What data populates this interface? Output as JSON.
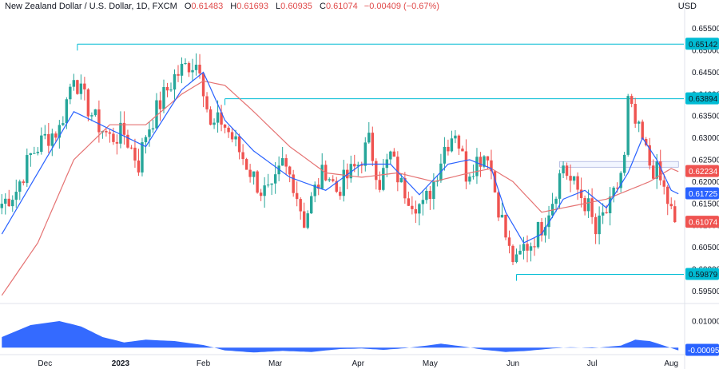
{
  "header": {
    "symbol": "New Zealand Dollar / U.S. Dollar, 1D, FXCM",
    "o_label": "O",
    "o_value": "0.61483",
    "h_label": "H",
    "h_value": "0.61693",
    "l_label": "L",
    "l_value": "0.60935",
    "c_label": "C",
    "c_value": "0.61074",
    "change": "−0.00409 (−0.67%)"
  },
  "currency_label": "USD",
  "colors": {
    "up": "#26a69a",
    "down": "#ef5350",
    "ma_fast": "#2962ff",
    "ma_slow": "#e57373",
    "level": "#00bcd4",
    "histogram": "#2962ff",
    "current_price": "#ef5350"
  },
  "chart_data": [
    {
      "type": "candlestick",
      "title": "New Zealand Dollar / U.S. Dollar, 1D, FXCM",
      "y_ticks": [
        "0.65500",
        "0.65000",
        "0.64500",
        "0.64000",
        "0.63500",
        "0.63000",
        "0.62500",
        "0.62000",
        "0.61500",
        "0.61000",
        "0.60500",
        "0.60000",
        "0.59500"
      ],
      "ylim": [
        0.5925,
        0.6575
      ],
      "x_tick_labels": [
        {
          "label": "Dec",
          "bar": 12,
          "bold": false
        },
        {
          "label": "2023",
          "bar": 33,
          "bold": true
        },
        {
          "label": "Feb",
          "bar": 56,
          "bold": false
        },
        {
          "label": "Mar",
          "bar": 76,
          "bold": false
        },
        {
          "label": "Apr",
          "bar": 99,
          "bold": false
        },
        {
          "label": "May",
          "bar": 119,
          "bold": false
        },
        {
          "label": "Jun",
          "bar": 142,
          "bold": false
        },
        {
          "label": "Jul",
          "bar": 164,
          "bold": false
        },
        {
          "label": "Aug",
          "bar": 186,
          "bold": false
        }
      ],
      "bar_count": 190,
      "ohlc_anchor_closes": [
        [
          0,
          0.615
        ],
        [
          4,
          0.618
        ],
        [
          8,
          0.626
        ],
        [
          12,
          0.63
        ],
        [
          16,
          0.632
        ],
        [
          20,
          0.645
        ],
        [
          22,
          0.64
        ],
        [
          26,
          0.634
        ],
        [
          30,
          0.63
        ],
        [
          34,
          0.631
        ],
        [
          38,
          0.624
        ],
        [
          40,
          0.631
        ],
        [
          44,
          0.638
        ],
        [
          48,
          0.644
        ],
        [
          52,
          0.647
        ],
        [
          55,
          0.647
        ],
        [
          58,
          0.632
        ],
        [
          61,
          0.634
        ],
        [
          64,
          0.63
        ],
        [
          68,
          0.624
        ],
        [
          72,
          0.618
        ],
        [
          75,
          0.617
        ],
        [
          78,
          0.624
        ],
        [
          81,
          0.62
        ],
        [
          84,
          0.611
        ],
        [
          87,
          0.618
        ],
        [
          90,
          0.623
        ],
        [
          93,
          0.618
        ],
        [
          96,
          0.621
        ],
        [
          99,
          0.624
        ],
        [
          102,
          0.629
        ],
        [
          105,
          0.62
        ],
        [
          108,
          0.626
        ],
        [
          111,
          0.619
        ],
        [
          114,
          0.616
        ],
        [
          117,
          0.614
        ],
        [
          120,
          0.62
        ],
        [
          123,
          0.628
        ],
        [
          126,
          0.632
        ],
        [
          129,
          0.622
        ],
        [
          132,
          0.625
        ],
        [
          135,
          0.627
        ],
        [
          137,
          0.618
        ],
        [
          139,
          0.611
        ],
        [
          141,
          0.604
        ],
        [
          143,
          0.601
        ],
        [
          145,
          0.605
        ],
        [
          147,
          0.606
        ],
        [
          150,
          0.61
        ],
        [
          153,
          0.616
        ],
        [
          156,
          0.624
        ],
        [
          158,
          0.62
        ],
        [
          160,
          0.618
        ],
        [
          163,
          0.614
        ],
        [
          165,
          0.608
        ],
        [
          167,
          0.612
        ],
        [
          169,
          0.614
        ],
        [
          171,
          0.619
        ],
        [
          173,
          0.625
        ],
        [
          174,
          0.638
        ],
        [
          176,
          0.633
        ],
        [
          178,
          0.629
        ],
        [
          180,
          0.624
        ],
        [
          182,
          0.622
        ],
        [
          184,
          0.618
        ],
        [
          186,
          0.613
        ],
        [
          187,
          0.6107
        ]
      ],
      "ma_fast_anchors": [
        [
          0,
          0.608
        ],
        [
          10,
          0.622
        ],
        [
          20,
          0.636
        ],
        [
          30,
          0.632
        ],
        [
          40,
          0.628
        ],
        [
          50,
          0.641
        ],
        [
          56,
          0.645
        ],
        [
          62,
          0.634
        ],
        [
          70,
          0.627
        ],
        [
          80,
          0.621
        ],
        [
          90,
          0.618
        ],
        [
          100,
          0.624
        ],
        [
          108,
          0.624
        ],
        [
          116,
          0.617
        ],
        [
          124,
          0.624
        ],
        [
          130,
          0.625
        ],
        [
          136,
          0.623
        ],
        [
          140,
          0.613
        ],
        [
          145,
          0.606
        ],
        [
          150,
          0.608
        ],
        [
          156,
          0.616
        ],
        [
          162,
          0.618
        ],
        [
          168,
          0.614
        ],
        [
          174,
          0.622
        ],
        [
          178,
          0.63
        ],
        [
          182,
          0.625
        ],
        [
          186,
          0.618
        ],
        [
          188,
          0.6172
        ]
      ],
      "ma_slow_anchors": [
        [
          0,
          0.594
        ],
        [
          10,
          0.606
        ],
        [
          20,
          0.625
        ],
        [
          30,
          0.633
        ],
        [
          40,
          0.633
        ],
        [
          50,
          0.64
        ],
        [
          56,
          0.643
        ],
        [
          62,
          0.642
        ],
        [
          70,
          0.636
        ],
        [
          80,
          0.628
        ],
        [
          90,
          0.622
        ],
        [
          100,
          0.621
        ],
        [
          110,
          0.622
        ],
        [
          120,
          0.62
        ],
        [
          130,
          0.622
        ],
        [
          136,
          0.623
        ],
        [
          142,
          0.62
        ],
        [
          150,
          0.613
        ],
        [
          156,
          0.614
        ],
        [
          162,
          0.615
        ],
        [
          168,
          0.616
        ],
        [
          174,
          0.618
        ],
        [
          180,
          0.62
        ],
        [
          186,
          0.623
        ],
        [
          188,
          0.6223
        ]
      ],
      "levels": [
        {
          "value": 0.65142,
          "label": "0.65142",
          "from_bar": 21
        },
        {
          "value": 0.63894,
          "label": "0.63894",
          "from_bar": 62
        },
        {
          "value": 0.59879,
          "label": "0.59879",
          "from_bar": 143
        }
      ],
      "zone": {
        "from_bar": 155,
        "to_bar": 188,
        "low": 0.6233,
        "high": 0.6246
      },
      "price_tags": [
        {
          "value": 0.62234,
          "label": "0.62234",
          "kind": "ma_slow"
        },
        {
          "value": 0.61725,
          "label": "0.61725",
          "kind": "ma_fast"
        },
        {
          "value": 0.61074,
          "label": "0.61074",
          "kind": "current"
        }
      ]
    },
    {
      "type": "area",
      "title": "",
      "y_ticks": [
        "0.01000"
      ],
      "tag": {
        "value": -0.00095,
        "label": "-0.00095"
      },
      "ylim": [
        -0.002,
        0.016
      ],
      "anchors": [
        [
          0,
          0.004
        ],
        [
          8,
          0.0085
        ],
        [
          16,
          0.01
        ],
        [
          22,
          0.008
        ],
        [
          28,
          0.004
        ],
        [
          34,
          0.002
        ],
        [
          40,
          0.003
        ],
        [
          48,
          0.0025
        ],
        [
          56,
          0.001
        ],
        [
          62,
          -0.001
        ],
        [
          70,
          -0.0018
        ],
        [
          78,
          -0.0012
        ],
        [
          86,
          -0.0016
        ],
        [
          94,
          -0.0005
        ],
        [
          100,
          -0.0003
        ],
        [
          106,
          -0.0008
        ],
        [
          112,
          -0.0002
        ],
        [
          118,
          0.0008
        ],
        [
          122,
          0.0015
        ],
        [
          128,
          0.0005
        ],
        [
          134,
          -0.0008
        ],
        [
          140,
          -0.0016
        ],
        [
          146,
          -0.0012
        ],
        [
          152,
          -0.0004
        ],
        [
          158,
          0.0002
        ],
        [
          164,
          -0.0002
        ],
        [
          168,
          0.0003
        ],
        [
          172,
          0.0008
        ],
        [
          176,
          0.003
        ],
        [
          180,
          0.0025
        ],
        [
          184,
          0.0008
        ],
        [
          188,
          -0.001
        ]
      ]
    }
  ]
}
